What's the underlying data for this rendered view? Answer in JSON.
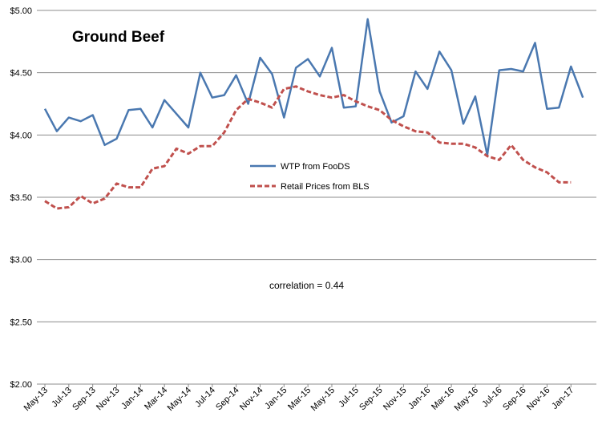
{
  "chart_data": {
    "type": "line",
    "title": "Ground Beef",
    "annotation": "correlation = 0.44",
    "y_ticks": [
      "$2.00",
      "$2.50",
      "$3.00",
      "$3.50",
      "$4.00",
      "$4.50",
      "$5.00"
    ],
    "ylim": [
      2.0,
      5.0
    ],
    "x_tick_labels": [
      "May-13",
      "Jul-13",
      "Sep-13",
      "Nov-13",
      "Jan-14",
      "Mar-14",
      "May-14",
      "Jul-14",
      "Sep-14",
      "Nov-14",
      "Jan-15",
      "Mar-15",
      "May-15",
      "Jul-15",
      "Sep-15",
      "Nov-15",
      "Jan-16",
      "Mar-16",
      "May-16",
      "Jul-16",
      "Sep-16",
      "Nov-16",
      "Jan-17"
    ],
    "months": [
      "May-13",
      "Jun-13",
      "Jul-13",
      "Aug-13",
      "Sep-13",
      "Oct-13",
      "Nov-13",
      "Dec-13",
      "Jan-14",
      "Feb-14",
      "Mar-14",
      "Apr-14",
      "May-14",
      "Jun-14",
      "Jul-14",
      "Aug-14",
      "Sep-14",
      "Oct-14",
      "Nov-14",
      "Dec-14",
      "Jan-15",
      "Feb-15",
      "Mar-15",
      "Apr-15",
      "May-15",
      "Jun-15",
      "Jul-15",
      "Aug-15",
      "Sep-15",
      "Oct-15",
      "Nov-15",
      "Dec-15",
      "Jan-16",
      "Feb-16",
      "Mar-16",
      "Apr-16",
      "May-16",
      "Jun-16",
      "Jul-16",
      "Aug-16",
      "Sep-16",
      "Oct-16",
      "Nov-16",
      "Dec-16",
      "Jan-17",
      "Feb-17"
    ],
    "series": [
      {
        "name": "WTP from FooDS",
        "color": "#4a78b0",
        "style": "solid",
        "values": [
          4.21,
          4.03,
          4.14,
          4.11,
          4.16,
          3.92,
          3.97,
          4.2,
          4.21,
          4.06,
          4.28,
          4.17,
          4.06,
          4.5,
          4.3,
          4.32,
          4.48,
          4.25,
          4.62,
          4.49,
          4.14,
          4.54,
          4.61,
          4.47,
          4.7,
          4.22,
          4.23,
          4.93,
          4.35,
          4.1,
          4.15,
          4.51,
          4.37,
          4.67,
          4.52,
          4.09,
          4.31,
          3.84,
          4.52,
          4.53,
          4.51,
          4.74,
          4.21,
          4.22,
          4.55,
          4.3
        ]
      },
      {
        "name": "Retail Prices from BLS",
        "color": "#c0504d",
        "style": "dashed",
        "values": [
          3.47,
          3.41,
          3.42,
          3.51,
          3.45,
          3.49,
          3.61,
          3.58,
          3.58,
          3.73,
          3.75,
          3.89,
          3.85,
          3.91,
          3.91,
          4.02,
          4.2,
          4.29,
          4.26,
          4.22,
          4.37,
          4.39,
          4.35,
          4.32,
          4.3,
          4.32,
          4.27,
          4.23,
          4.2,
          4.12,
          4.07,
          4.03,
          4.02,
          3.94,
          3.93,
          3.93,
          3.9,
          3.83,
          3.8,
          3.92,
          3.8,
          3.74,
          3.7,
          3.62,
          3.62,
          null
        ]
      }
    ]
  }
}
